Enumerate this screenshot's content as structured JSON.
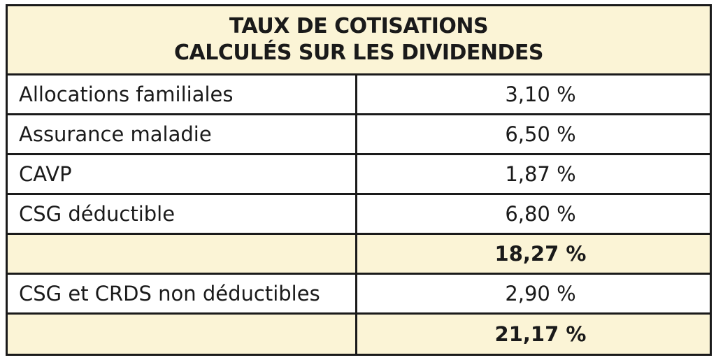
{
  "title": {
    "line1": "TAUX DE COTISATIONS",
    "line2": "CALCULÉS SUR LES DIVIDENDES"
  },
  "colors": {
    "highlight": "#fbf4d6",
    "border": "#1a1a1a"
  },
  "rows": [
    {
      "label": "Allocations familiales",
      "value": "3,10 %"
    },
    {
      "label": "Assurance maladie",
      "value": "6,50 %"
    },
    {
      "label": "CAVP",
      "value": "1,87 %"
    },
    {
      "label": "CSG déductible",
      "value": "6,80 %"
    },
    {
      "label": "",
      "value": "18,27 %"
    },
    {
      "label": "CSG et CRDS non déductibles",
      "value": "2,90 %"
    },
    {
      "label": "",
      "value": "21,17 %"
    }
  ]
}
